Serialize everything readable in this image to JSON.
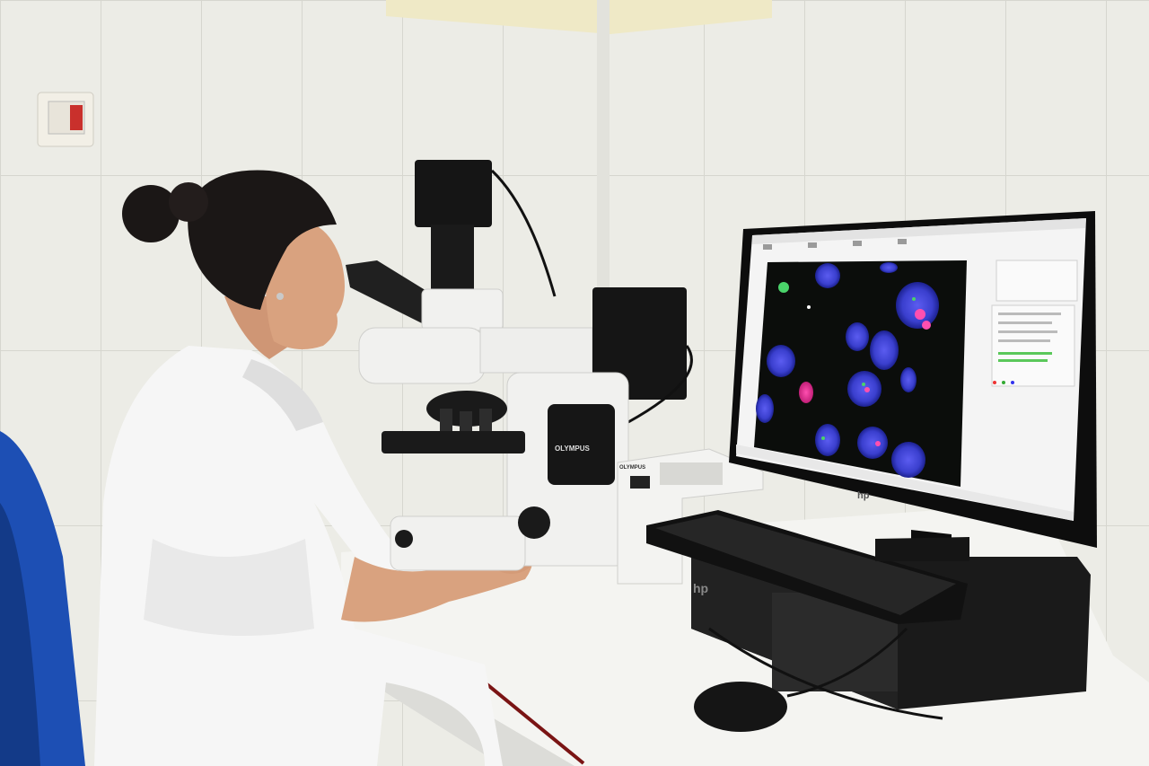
{
  "scene": {
    "description_type": "photo",
    "labels": {
      "microscope_brand": "OLYMPUS",
      "light_source_brand": "OLYMPUS",
      "monitor_logo": "hp",
      "computer_logo": "hp"
    }
  },
  "colors": {
    "wall": "#ecece6",
    "ceiling": "#efe9c6",
    "desk": "#f4f4f1",
    "coat": "#f5f5f5",
    "chair": "#1d4fb4",
    "hair": "#1b1716",
    "skin": "#d9a27f",
    "monitor_frame": "#111111",
    "screen_bg": "#f4f4f4",
    "cell_blue": "#3a46d6",
    "cell_magenta": "#e0318f",
    "cell_green": "#4ad36a"
  }
}
